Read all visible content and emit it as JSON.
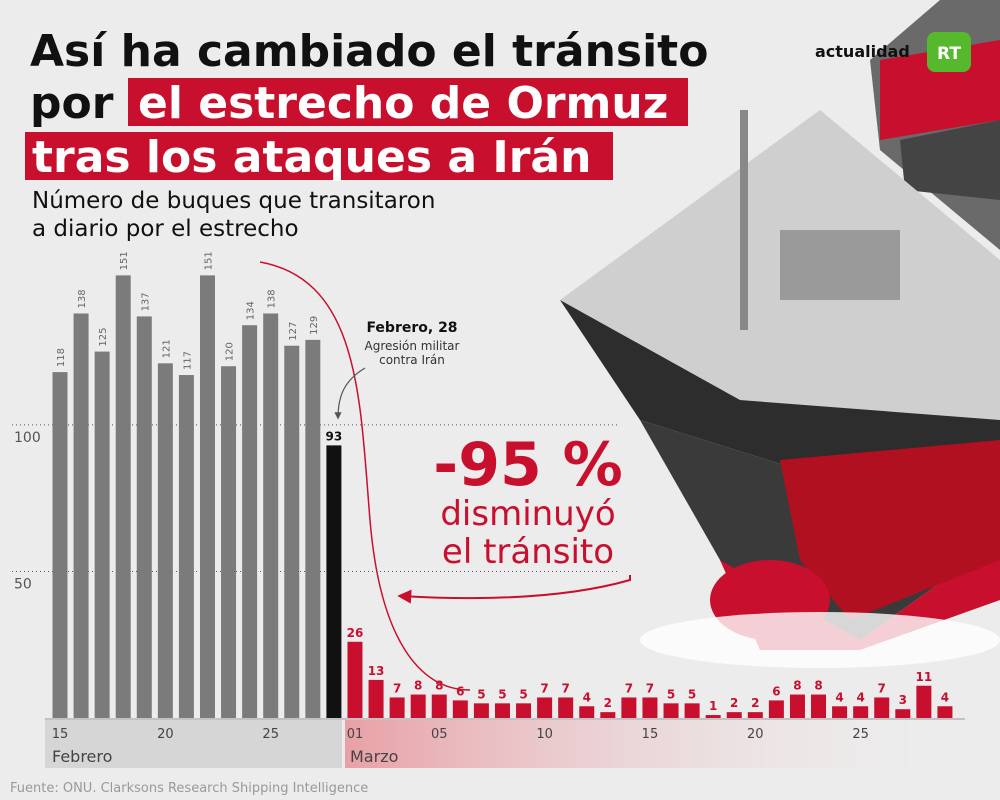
{
  "chart_data": {
    "type": "bar",
    "title_lines": [
      "Así ha cambiado el tránsito",
      "por",
      "el estrecho de Ormuz",
      "tras los ataques a Irán"
    ],
    "subtitle_lines": [
      "Número de buques que transitaron",
      "a diario por el estrecho"
    ],
    "logo": {
      "text": "actualidad",
      "badge": "RT"
    },
    "categories": [
      "15",
      null,
      null,
      null,
      null,
      "20",
      null,
      null,
      null,
      null,
      "25",
      null,
      null,
      null,
      "01",
      null,
      null,
      null,
      "05",
      null,
      null,
      null,
      null,
      "10",
      null,
      null,
      null,
      null,
      "15",
      null,
      null,
      null,
      null,
      "20",
      null,
      null,
      null,
      null,
      "25",
      null,
      null,
      null,
      null
    ],
    "values": [
      118,
      138,
      125,
      151,
      137,
      121,
      117,
      151,
      120,
      134,
      138,
      127,
      129,
      93,
      26,
      13,
      7,
      8,
      8,
      6,
      5,
      5,
      5,
      7,
      7,
      4,
      2,
      7,
      7,
      5,
      5,
      1,
      2,
      2,
      6,
      8,
      8,
      4,
      4,
      7,
      3,
      11,
      4
    ],
    "bar_colors": [
      "#7b7b7b",
      "#7b7b7b",
      "#7b7b7b",
      "#7b7b7b",
      "#7b7b7b",
      "#7b7b7b",
      "#7b7b7b",
      "#7b7b7b",
      "#7b7b7b",
      "#7b7b7b",
      "#7b7b7b",
      "#7b7b7b",
      "#7b7b7b",
      "#111111",
      "#c8102e",
      "#c8102e",
      "#c8102e",
      "#c8102e",
      "#c8102e",
      "#c8102e",
      "#c8102e",
      "#c8102e",
      "#c8102e",
      "#c8102e",
      "#c8102e",
      "#c8102e",
      "#c8102e",
      "#c8102e",
      "#c8102e",
      "#c8102e",
      "#c8102e",
      "#c8102e",
      "#c8102e",
      "#c8102e",
      "#c8102e",
      "#c8102e",
      "#c8102e",
      "#c8102e",
      "#c8102e",
      "#c8102e",
      "#c8102e",
      "#c8102e",
      "#c8102e"
    ],
    "months": [
      "Febrero",
      "Marzo"
    ],
    "ylim": [
      0,
      160
    ],
    "yticks": [
      50,
      100
    ],
    "grid": true,
    "annotation": {
      "title": "Febrero, 28",
      "lines": [
        "Agresión militar",
        "contra Irán"
      ]
    },
    "callout": {
      "big": "-95 %",
      "lines": [
        "disminuyó",
        "el tránsito"
      ]
    },
    "source": "Fuente: ONU. Clarksons Research Shipping Intelligence"
  }
}
